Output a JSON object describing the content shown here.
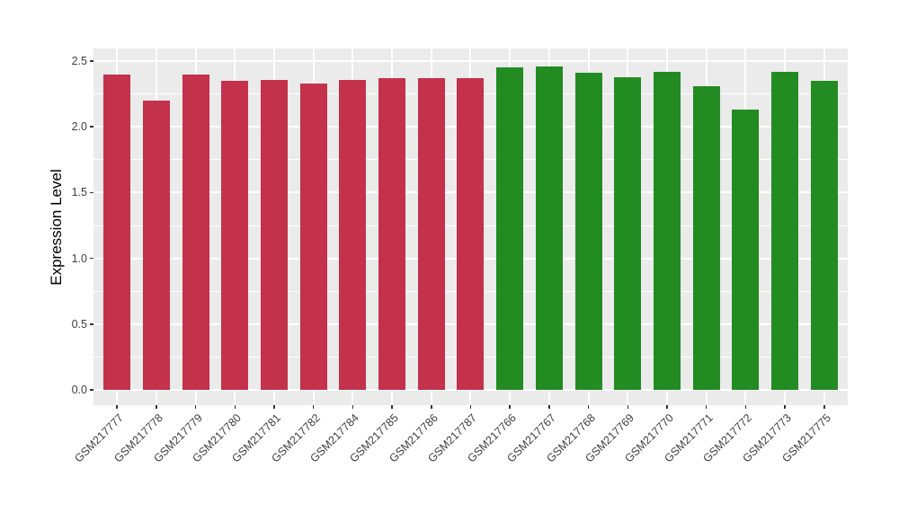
{
  "figure": {
    "background_color": "#FFFFFF",
    "panel_color": "#EBEBEB",
    "grid_color": "#FFFFFF",
    "axis_text_color": "#3E3E3E",
    "tick_mark_color": "#333333"
  },
  "chart_data": {
    "type": "bar",
    "title": "",
    "xlabel": "",
    "ylabel": "Expression Level",
    "ylim": [
      0,
      2.5
    ],
    "ytick_labels": [
      "0.0",
      "0.5",
      "1.0",
      "1.5",
      "2.0",
      "2.5"
    ],
    "ytick_values": [
      0,
      0.5,
      1.0,
      1.5,
      2.0,
      2.5
    ],
    "yminor_values": [
      0.25,
      0.75,
      1.25,
      1.75,
      2.25
    ],
    "grid": "on",
    "legend": "none",
    "group_colors": {
      "left_group": "#C3324A",
      "right_group": "#228B22"
    },
    "categories": [
      "GSM217777",
      "GSM217778",
      "GSM217779",
      "GSM217780",
      "GSM217781",
      "GSM217782",
      "GSM217784",
      "GSM217785",
      "GSM217786",
      "GSM217787",
      "GSM217766",
      "GSM217767",
      "GSM217768",
      "GSM217769",
      "GSM217770",
      "GSM217771",
      "GSM217772",
      "GSM217773",
      "GSM217775"
    ],
    "values": [
      2.4,
      2.2,
      2.4,
      2.35,
      2.36,
      2.33,
      2.36,
      2.37,
      2.37,
      2.37,
      2.45,
      2.46,
      2.41,
      2.38,
      2.42,
      2.31,
      2.13,
      2.42,
      2.35
    ],
    "bar_colors": [
      "#C3324A",
      "#C3324A",
      "#C3324A",
      "#C3324A",
      "#C3324A",
      "#C3324A",
      "#C3324A",
      "#C3324A",
      "#C3324A",
      "#C3324A",
      "#228B22",
      "#228B22",
      "#228B22",
      "#228B22",
      "#228B22",
      "#228B22",
      "#228B22",
      "#228B22",
      "#228B22"
    ]
  }
}
